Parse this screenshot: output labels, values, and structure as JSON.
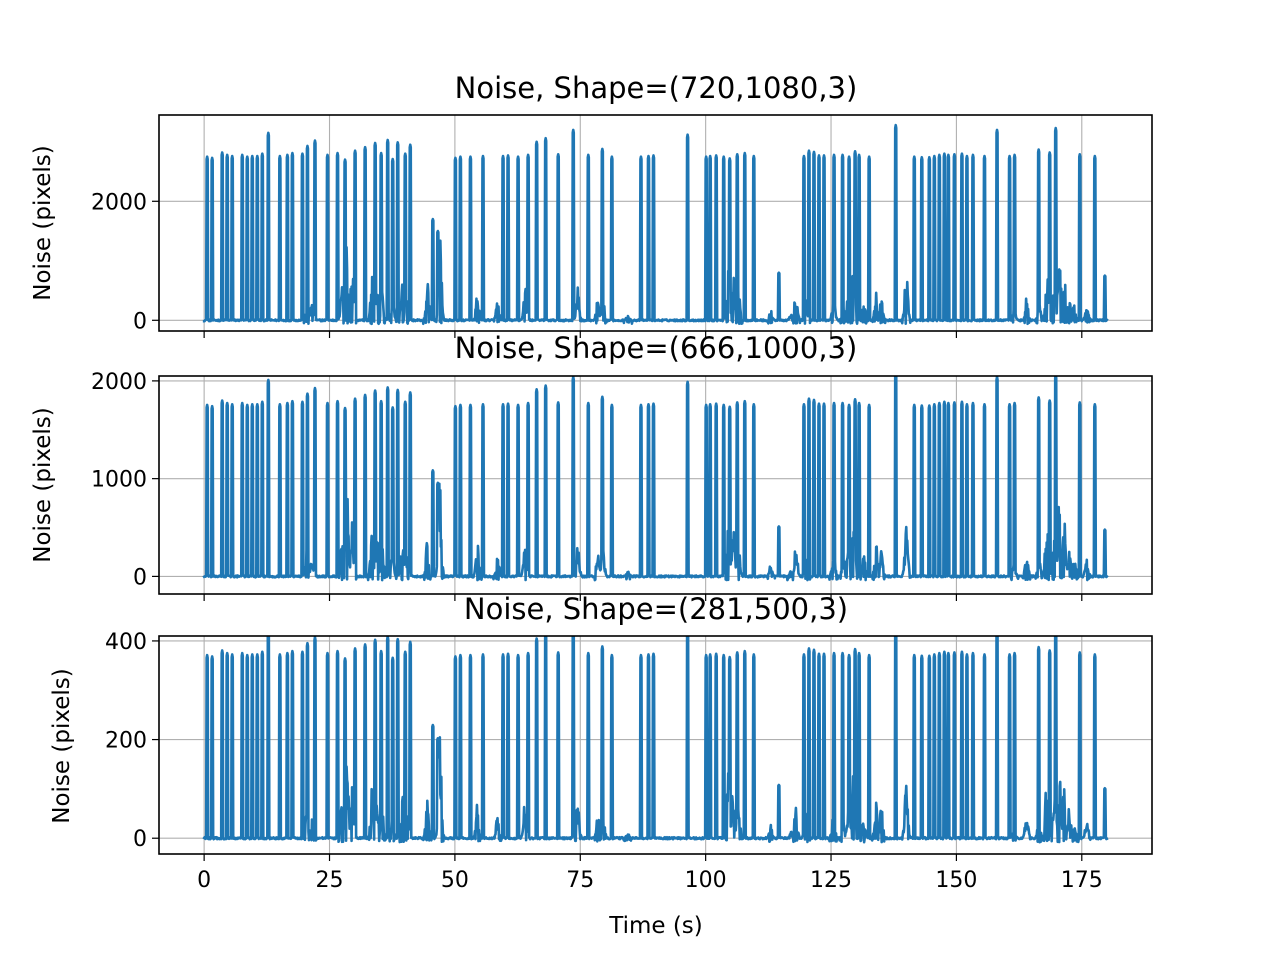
{
  "chart_data": [
    {
      "type": "line",
      "title": "Noise, Shape=(720,1080,3)",
      "xlabel": "",
      "ylabel": "Noise (pixels)",
      "xlim": [
        -9,
        189
      ],
      "ylim": [
        -180,
        3450
      ],
      "xticks": [
        0,
        25,
        50,
        75,
        100,
        125,
        150,
        175
      ],
      "xtick_labels_visible": false,
      "yticks": [
        0,
        2000
      ],
      "ytick_labels": [
        "0",
        "2000"
      ],
      "grid": true,
      "peak_scale": 1.0,
      "line_color": "#1f77b4"
    },
    {
      "type": "line",
      "title": "Noise, Shape=(666,1000,3)",
      "xlabel": "",
      "ylabel": "Noise (pixels)",
      "xlim": [
        -9,
        189
      ],
      "ylim": [
        -180,
        2050
      ],
      "xticks": [
        0,
        25,
        50,
        75,
        100,
        125,
        150,
        175
      ],
      "xtick_labels_visible": false,
      "yticks": [
        0,
        1000,
        2000
      ],
      "ytick_labels": [
        "0",
        "1000",
        "2000"
      ],
      "grid": true,
      "peak_scale": 0.638,
      "line_color": "#1f77b4"
    },
    {
      "type": "line",
      "title": "Noise, Shape=(281,500,3)",
      "xlabel": "Time (s)",
      "ylabel": "Noise (pixels)",
      "xlim": [
        -9,
        189
      ],
      "ylim": [
        -32,
        410
      ],
      "xticks": [
        0,
        25,
        50,
        75,
        100,
        125,
        150,
        175
      ],
      "xtick_labels_visible": true,
      "xtick_labels": [
        "0",
        "25",
        "50",
        "75",
        "100",
        "125",
        "150",
        "175"
      ],
      "yticks": [
        0,
        200,
        400
      ],
      "ytick_labels": [
        "0",
        "200",
        "400"
      ],
      "grid": true,
      "peak_scale": 0.135,
      "line_color": "#1f77b4"
    }
  ],
  "shared_series": {
    "x_start": 0,
    "x_end": 180,
    "peaks": [
      [
        0.5,
        2750
      ],
      [
        1.5,
        2730
      ],
      [
        3.5,
        2820
      ],
      [
        4.5,
        2780
      ],
      [
        5.5,
        2760
      ],
      [
        7.5,
        2780
      ],
      [
        8.5,
        2750
      ],
      [
        9.5,
        2760
      ],
      [
        10.5,
        2760
      ],
      [
        11.5,
        2800
      ],
      [
        12.7,
        3150
      ],
      [
        15,
        2760
      ],
      [
        16.5,
        2780
      ],
      [
        17.5,
        2810
      ],
      [
        19.5,
        2800
      ],
      [
        20.5,
        2930
      ],
      [
        22,
        3020
      ],
      [
        24.5,
        2780
      ],
      [
        26.5,
        2810
      ],
      [
        28,
        2700
      ],
      [
        30,
        2850
      ],
      [
        32,
        2910
      ],
      [
        34,
        2980
      ],
      [
        35.2,
        2810
      ],
      [
        36.5,
        3030
      ],
      [
        37.5,
        2710
      ],
      [
        38.5,
        2990
      ],
      [
        40,
        2800
      ],
      [
        41,
        2950
      ],
      [
        45.5,
        1700
      ],
      [
        46.5,
        1500
      ],
      [
        50,
        2730
      ],
      [
        51,
        2750
      ],
      [
        53,
        2750
      ],
      [
        55.5,
        2760
      ],
      [
        59.5,
        2760
      ],
      [
        60.5,
        2770
      ],
      [
        62.5,
        2750
      ],
      [
        64.5,
        2780
      ],
      [
        66.2,
        3000
      ],
      [
        68,
        3060
      ],
      [
        70.5,
        2790
      ],
      [
        73.5,
        3200
      ],
      [
        76.5,
        2780
      ],
      [
        79.3,
        2880
      ],
      [
        81.2,
        2750
      ],
      [
        87,
        2750
      ],
      [
        88.5,
        2760
      ],
      [
        89.5,
        2770
      ],
      [
        96.3,
        3120
      ],
      [
        100,
        2750
      ],
      [
        100.8,
        2760
      ],
      [
        102,
        2770
      ],
      [
        103.5,
        2750
      ],
      [
        104.7,
        2720
      ],
      [
        106.2,
        2790
      ],
      [
        107.7,
        2810
      ],
      [
        109.5,
        2760
      ],
      [
        114.5,
        800
      ],
      [
        119.5,
        2760
      ],
      [
        120.5,
        2850
      ],
      [
        121.5,
        2830
      ],
      [
        122.5,
        2770
      ],
      [
        123.5,
        2770
      ],
      [
        125.5,
        2780
      ],
      [
        127.2,
        2780
      ],
      [
        128.5,
        2750
      ],
      [
        129.7,
        2840
      ],
      [
        130.5,
        2780
      ],
      [
        132.5,
        2750
      ],
      [
        137.8,
        3280
      ],
      [
        141.5,
        2750
      ],
      [
        143,
        2740
      ],
      [
        144.5,
        2740
      ],
      [
        145.5,
        2760
      ],
      [
        146.5,
        2780
      ],
      [
        147.5,
        2800
      ],
      [
        148.3,
        2780
      ],
      [
        149.5,
        2790
      ],
      [
        151,
        2800
      ],
      [
        152,
        2760
      ],
      [
        153.2,
        2780
      ],
      [
        155.5,
        2760
      ],
      [
        158,
        3200
      ],
      [
        160.5,
        2760
      ],
      [
        161.5,
        2780
      ],
      [
        166.3,
        2870
      ],
      [
        168.5,
        2820
      ],
      [
        169.7,
        3230
      ],
      [
        174.5,
        2790
      ],
      [
        177.5,
        2760
      ],
      [
        179.5,
        750
      ]
    ],
    "bumps": [
      [
        20.5,
        450
      ],
      [
        21.5,
        300
      ],
      [
        27.5,
        600
      ],
      [
        28.5,
        1330
      ],
      [
        29.5,
        900
      ],
      [
        33.5,
        780
      ],
      [
        34.5,
        600
      ],
      [
        35.5,
        500
      ],
      [
        37.5,
        400
      ],
      [
        39.5,
        700
      ],
      [
        40.5,
        400
      ],
      [
        44.5,
        650
      ],
      [
        47,
        1600
      ],
      [
        54.5,
        530
      ],
      [
        58.5,
        350
      ],
      [
        64,
        600
      ],
      [
        74.5,
        550
      ],
      [
        78.5,
        400
      ],
      [
        79.5,
        500
      ],
      [
        84.5,
        100
      ],
      [
        104.5,
        1000
      ],
      [
        105.5,
        800
      ],
      [
        106.5,
        600
      ],
      [
        113,
        200
      ],
      [
        117,
        100
      ],
      [
        118,
        500
      ],
      [
        120,
        450
      ],
      [
        125.5,
        400
      ],
      [
        127.5,
        300
      ],
      [
        128.5,
        550
      ],
      [
        129.5,
        1050
      ],
      [
        131.5,
        400
      ],
      [
        134,
        550
      ],
      [
        135,
        500
      ],
      [
        140,
        850
      ],
      [
        161.5,
        200
      ],
      [
        164,
        400
      ],
      [
        166.5,
        300
      ],
      [
        168,
        900
      ],
      [
        169.5,
        700
      ],
      [
        170.5,
        1300
      ],
      [
        171.5,
        900
      ],
      [
        172.5,
        500
      ],
      [
        173.5,
        300
      ],
      [
        176,
        300
      ]
    ]
  }
}
